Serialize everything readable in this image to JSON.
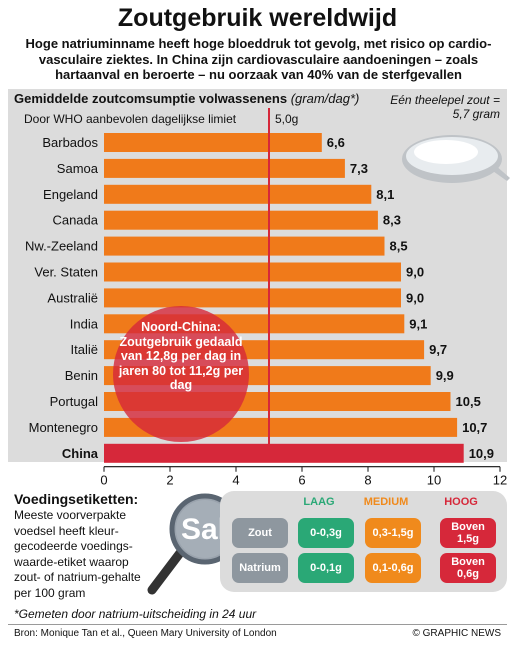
{
  "header": {
    "title": "Zoutgebruik wereldwijd",
    "subtitle": "Hoge natriuminname heeft hoge bloeddruk tot gevolg, met risico op cardio-vasculaire ziektes. In China zijn cardiovasculaire aandoeningen – zoals hartaanval en beroerte – nu oorzaak van 40% van de sterfgevallen"
  },
  "chart_data": {
    "type": "bar",
    "orientation": "horizontal",
    "title": "Gemiddelde zoutcomsumptie volwassenens",
    "unit_label": "(gram/dag*)",
    "categories": [
      "Barbados",
      "Samoa",
      "Engeland",
      "Canada",
      "Nw.-Zeeland",
      "Ver. Staten",
      "Australië",
      "India",
      "Italië",
      "Benin",
      "Portugal",
      "Montenegro",
      "China"
    ],
    "values": [
      6.6,
      7.3,
      8.1,
      8.3,
      8.5,
      9.0,
      9.0,
      9.1,
      9.7,
      9.9,
      10.5,
      10.7,
      10.9
    ],
    "value_labels": [
      "6,6",
      "7,3",
      "8,1",
      "8,3",
      "8,5",
      "9,0",
      "9,0",
      "9,1",
      "9,7",
      "9,9",
      "10,5",
      "10,7",
      "10,9"
    ],
    "highlight": "China",
    "xlim": [
      0,
      12
    ],
    "xticks": [
      0,
      2,
      4,
      6,
      8,
      10,
      12
    ],
    "reference_line": {
      "value": 5.0,
      "label": "Door WHO aanbevolen dagelijkse limiet",
      "value_label": "5,0g"
    },
    "colors": {
      "bar": "#f07a1a",
      "highlight": "#d6283a",
      "reference": "#d6283a"
    }
  },
  "spoon_note": "Eén theelepel zout = 5,7 gram",
  "china_note": "Noord-China: Zoutgebruik gedaald van 12,8g per dag in jaren 80 tot 11,2g per dag",
  "labels": {
    "heading": "Voedingsetiketten:",
    "text": "Meeste voorverpakte voedsel heeft kleur-gecodeerde voedings-waarde-etiket waarop zout- of natrium-gehalte per 100 gram",
    "magnifier": "Sal",
    "rows": [
      "Zout",
      "Natrium"
    ],
    "levels": [
      {
        "name": "LAAG",
        "color": "#2aa876",
        "zout": "0-0,3g",
        "natrium": "0-0,1g"
      },
      {
        "name": "MEDIUM",
        "color": "#f08a1c",
        "zout": "0,3-1,5g",
        "natrium": "0,1-0,6g"
      },
      {
        "name": "HOOG",
        "color": "#d6283a",
        "zout": "Boven 1,5g",
        "natrium": "Boven 0,6g"
      }
    ]
  },
  "footnote": "*Gemeten door natrium-uitscheiding in 24 uur",
  "source": "Bron: Monique Tan et al., Queen Mary University of London",
  "credit": "© GRAPHIC NEWS"
}
